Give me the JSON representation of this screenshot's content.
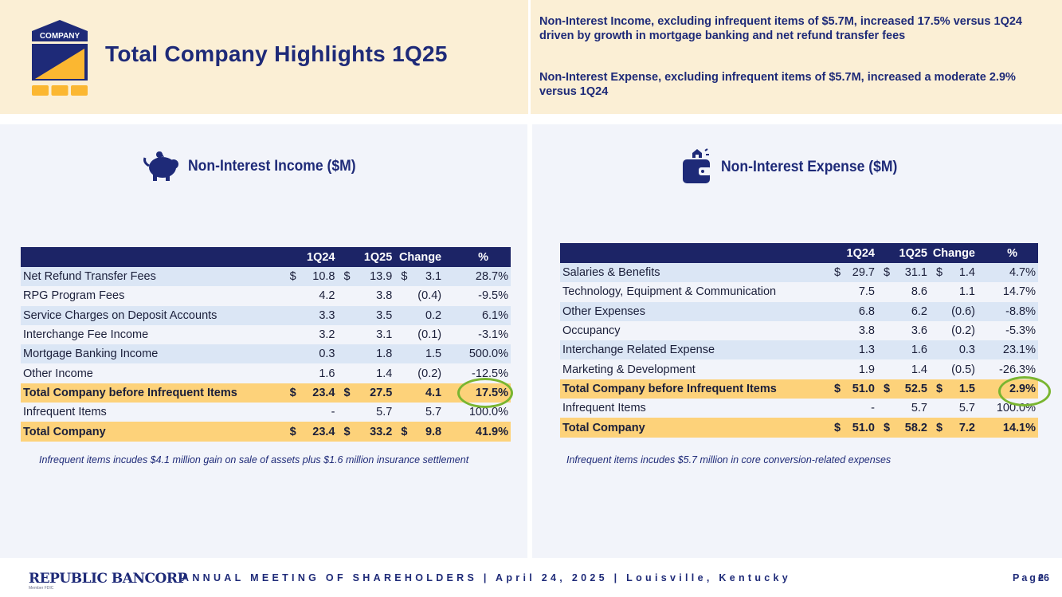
{
  "header": {
    "logo_text": "COMPANY",
    "title": "Total Company Highlights 1Q25",
    "highlights": [
      "Non-Interest Income, excluding infrequent items of $5.7M, increased 17.5% versus 1Q24 driven by growth in mortgage banking and net refund transfer fees",
      "Non-Interest Expense, excluding infrequent items of $5.7M, increased a moderate 2.9% versus 1Q24"
    ]
  },
  "income": {
    "title": "Non-Interest Income ($M)",
    "columns": [
      "1Q24",
      "1Q25",
      "Change",
      "%"
    ],
    "rows": [
      {
        "label": "Net Refund Transfer Fees",
        "d1": "$",
        "q1": "10.8",
        "d2": "$",
        "q2": "13.9",
        "d3": "$",
        "chg": "3.1",
        "pct": "28.7%",
        "style": "shade"
      },
      {
        "label": "RPG Program Fees",
        "d1": "",
        "q1": "4.2",
        "d2": "",
        "q2": "3.8",
        "d3": "",
        "chg": "(0.4)",
        "pct": "-9.5%",
        "style": "plain"
      },
      {
        "label": "Service Charges on Deposit Accounts",
        "d1": "",
        "q1": "3.3",
        "d2": "",
        "q2": "3.5",
        "d3": "",
        "chg": "0.2",
        "pct": "6.1%",
        "style": "shade"
      },
      {
        "label": "Interchange Fee Income",
        "d1": "",
        "q1": "3.2",
        "d2": "",
        "q2": "3.1",
        "d3": "",
        "chg": "(0.1)",
        "pct": "-3.1%",
        "style": "plain"
      },
      {
        "label": "Mortgage Banking Income",
        "d1": "",
        "q1": "0.3",
        "d2": "",
        "q2": "1.8",
        "d3": "",
        "chg": "1.5",
        "pct": "500.0%",
        "style": "shade"
      },
      {
        "label": "Other Income",
        "d1": "",
        "q1": "1.6",
        "d2": "",
        "q2": "1.4",
        "d3": "",
        "chg": "(0.2)",
        "pct": "-12.5%",
        "style": "plain"
      },
      {
        "label": "Total Company before Infrequent Items",
        "d1": "$",
        "q1": "23.4",
        "d2": "$",
        "q2": "27.5",
        "d3": "",
        "chg": "4.1",
        "pct": "17.5%",
        "style": "total"
      },
      {
        "label": "Infrequent Items",
        "d1": "",
        "q1": "-",
        "d2": "",
        "q2": "5.7",
        "d3": "",
        "chg": "5.7",
        "pct": "100.0%",
        "style": "plain"
      },
      {
        "label": "Total Company",
        "d1": "$",
        "q1": "23.4",
        "d2": "$",
        "q2": "33.2",
        "d3": "$",
        "chg": "9.8",
        "pct": "41.9%",
        "style": "total"
      }
    ],
    "footnote": "Infrequent items incudes $4.1 million gain on sale of assets plus $1.6 million insurance settlement"
  },
  "expense": {
    "title": "Non-Interest Expense ($M)",
    "columns": [
      "1Q24",
      "1Q25",
      "Change",
      "%"
    ],
    "rows": [
      {
        "label": "Salaries & Benefits",
        "d1": "$",
        "q1": "29.7",
        "d2": "$",
        "q2": "31.1",
        "d3": "$",
        "chg": "1.4",
        "pct": "4.7%",
        "style": "shade"
      },
      {
        "label": "Technology, Equipment & Communication",
        "d1": "",
        "q1": "7.5",
        "d2": "",
        "q2": "8.6",
        "d3": "",
        "chg": "1.1",
        "pct": "14.7%",
        "style": "plain"
      },
      {
        "label": "Other Expenses",
        "d1": "",
        "q1": "6.8",
        "d2": "",
        "q2": "6.2",
        "d3": "",
        "chg": "(0.6)",
        "pct": "-8.8%",
        "style": "shade"
      },
      {
        "label": "Occupancy",
        "d1": "",
        "q1": "3.8",
        "d2": "",
        "q2": "3.6",
        "d3": "",
        "chg": "(0.2)",
        "pct": "-5.3%",
        "style": "plain"
      },
      {
        "label": "Interchange Related Expense",
        "d1": "",
        "q1": "1.3",
        "d2": "",
        "q2": "1.6",
        "d3": "",
        "chg": "0.3",
        "pct": "23.1%",
        "style": "shade"
      },
      {
        "label": "Marketing & Development",
        "d1": "",
        "q1": "1.9",
        "d2": "",
        "q2": "1.4",
        "d3": "",
        "chg": "(0.5)",
        "pct": "-26.3%",
        "style": "plain"
      },
      {
        "label": "Total Company before Infrequent Items",
        "d1": "$",
        "q1": "51.0",
        "d2": "$",
        "q2": "52.5",
        "d3": "$",
        "chg": "1.5",
        "pct": "2.9%",
        "style": "total"
      },
      {
        "label": "Infrequent Items",
        "d1": "",
        "q1": "-",
        "d2": "",
        "q2": "5.7",
        "d3": "",
        "chg": "5.7",
        "pct": "100.0%",
        "style": "plain"
      },
      {
        "label": "Total Company",
        "d1": "$",
        "q1": "51.0",
        "d2": "$",
        "q2": "58.2",
        "d3": "$",
        "chg": "7.2",
        "pct": "14.1%",
        "style": "total"
      }
    ],
    "footnote": "Infrequent items incudes $5.7 million in core conversion-related expenses"
  },
  "footer": {
    "brand": "REPUBLIC BANCORP",
    "brand_sub": "Member FDIC",
    "tagline": "ANNUAL MEETING OF SHAREHOLDERS | April 24, 2025 | Louisville, Kentucky",
    "page_label": "Page",
    "page_number": "26"
  },
  "colors": {
    "navy": "#1e2a78",
    "table_header": "#1c2466",
    "gold": "#fdd27a",
    "cream": "#fbefd5",
    "row_shade": "#dbe6f5",
    "circle": "#79b530"
  }
}
